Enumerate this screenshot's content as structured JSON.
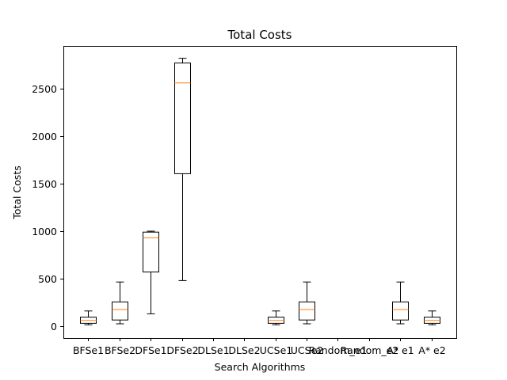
{
  "chart_data": {
    "type": "box",
    "title": "Total Costs",
    "xlabel": "Search Algorithms",
    "ylabel": "Total Costs",
    "ylim": [
      -120,
      2900
    ],
    "yticks": [
      0,
      500,
      1000,
      1500,
      2000,
      2500
    ],
    "grid": false,
    "colors": {
      "box": "#000000",
      "median": "#ff7f0e",
      "background": "#ffffff"
    },
    "categories": [
      "BFSe1",
      "BFSe2",
      "DFSe1",
      "DFSe2",
      "DLSe1",
      "DLSe2",
      "UCSe1",
      "UCSe2",
      "Random_e1",
      "Random_e2",
      "A* e1",
      "A* e2"
    ],
    "boxes": [
      {
        "label": "BFSe1",
        "whisker_low": 15,
        "q1": 30,
        "median": 60,
        "q3": 95,
        "whisker_high": 160
      },
      {
        "label": "BFSe2",
        "whisker_low": 25,
        "q1": 65,
        "median": 175,
        "q3": 255,
        "whisker_high": 465
      },
      {
        "label": "DFSe1",
        "whisker_low": 130,
        "q1": 570,
        "median": 930,
        "q3": 990,
        "whisker_high": 1000
      },
      {
        "label": "DFSe2",
        "whisker_low": 480,
        "q1": 1605,
        "median": 2560,
        "q3": 2770,
        "whisker_high": 2820
      },
      {
        "label": "DLSe1",
        "empty": true
      },
      {
        "label": "DLSe2",
        "empty": true
      },
      {
        "label": "UCSe1",
        "whisker_low": 15,
        "q1": 30,
        "median": 60,
        "q3": 95,
        "whisker_high": 160
      },
      {
        "label": "UCSe2",
        "whisker_low": 25,
        "q1": 65,
        "median": 175,
        "q3": 255,
        "whisker_high": 465
      },
      {
        "label": "Random_e1",
        "empty": true
      },
      {
        "label": "Random_e2",
        "empty": true
      },
      {
        "label": "A* e1",
        "whisker_low": 25,
        "q1": 65,
        "median": 175,
        "q3": 255,
        "whisker_high": 465
      },
      {
        "label": "A* e2",
        "whisker_low": 15,
        "q1": 30,
        "median": 60,
        "q3": 95,
        "whisker_high": 160
      }
    ]
  }
}
